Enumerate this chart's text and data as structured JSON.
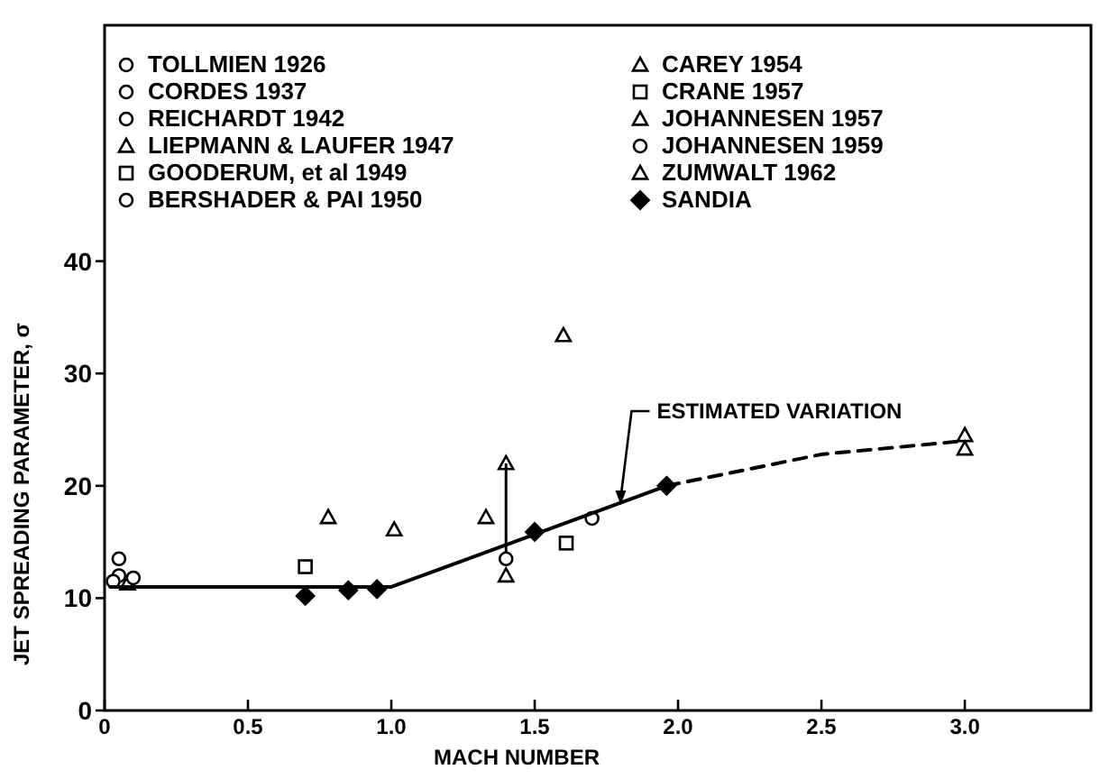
{
  "chart_data": {
    "type": "scatter",
    "xlabel": "MACH NUMBER",
    "ylabel": "JET SPREADING PARAMETER, σ",
    "xlim": [
      0,
      3.44
    ],
    "ylim": [
      0,
      61
    ],
    "xticks": [
      0,
      0.5,
      {
        "value": 1,
        "label": "1.0"
      },
      1.5,
      {
        "value": 2,
        "label": "2.0"
      },
      2.5,
      {
        "value": 3,
        "label": "3.0"
      }
    ],
    "yticks": [
      0,
      10,
      20,
      30,
      40
    ],
    "grid": false,
    "legend": "top",
    "annotations": [
      {
        "text": "ESTIMATED VARIATION",
        "x": 1.8,
        "y": 18.3
      }
    ],
    "series": [
      {
        "name": "TOLLMIEN 1926",
        "color": "#000000",
        "marker": "circle",
        "x": [
          0.05
        ],
        "values": [
          12
        ]
      },
      {
        "name": "CORDES 1937",
        "color": "#000000",
        "marker": "circle",
        "x": [
          0.03
        ],
        "values": [
          11.5
        ]
      },
      {
        "name": "REICHARDT 1942",
        "color": "#000000",
        "marker": "circle",
        "x": [
          0.05
        ],
        "values": [
          13.5
        ]
      },
      {
        "name": "LIEPMANN & LAUFER 1947",
        "color": "#000000",
        "marker": "triangle",
        "x": [
          0.08
        ],
        "values": [
          11.3
        ]
      },
      {
        "name": "GOODERUM, et al 1949",
        "color": "#000000",
        "marker": "square",
        "x": [
          1.61
        ],
        "values": [
          14.9
        ]
      },
      {
        "name": "BERSHADER & PAI 1950",
        "color": "#000000",
        "marker": "circle",
        "x": [
          0.1,
          1.7
        ],
        "values": [
          11.8,
          17.1
        ]
      },
      {
        "name": "CAREY 1954",
        "color": "#000000",
        "marker": "triangle",
        "x": [
          0.78,
          1.01,
          1.33,
          1.6
        ],
        "values": [
          17.2,
          16.1,
          17.2,
          33.4
        ]
      },
      {
        "name": "CRANE 1957",
        "color": "#000000",
        "marker": "square",
        "x": [
          0.7
        ],
        "values": [
          12.8
        ]
      },
      {
        "name": "JOHANNESEN 1957",
        "color": "#000000",
        "marker": "triangle",
        "x": [
          1.4,
          1.4
        ],
        "values": [
          22,
          12
        ]
      },
      {
        "name": "JOHANNESEN 1959",
        "color": "#000000",
        "marker": "circle",
        "x": [
          1.4
        ],
        "values": [
          13.5
        ],
        "errors": [
          [
            13.5,
            22
          ]
        ]
      },
      {
        "name": "ZUMWALT 1962",
        "color": "#000000",
        "marker": "triangle",
        "x": [
          3.0,
          3.0
        ],
        "values": [
          24.5,
          23.3
        ]
      },
      {
        "name": "SANDIA",
        "color": "#000000",
        "marker": "diamond",
        "x": [
          0.7,
          0.85,
          0.95,
          1.5,
          1.96
        ],
        "values": [
          10.2,
          10.7,
          10.8,
          15.9,
          20.0
        ]
      },
      {
        "type": "line",
        "color": "#000000",
        "marker": "none",
        "line_style": "solid",
        "x": [
          0.02,
          1.0,
          1.96
        ],
        "values": [
          11,
          11,
          20
        ]
      },
      {
        "type": "line",
        "color": "#000000",
        "marker": "none",
        "line_style": "dashed",
        "x": [
          1.96,
          2.5,
          3.0
        ],
        "values": [
          20,
          22.8,
          24
        ]
      }
    ]
  }
}
